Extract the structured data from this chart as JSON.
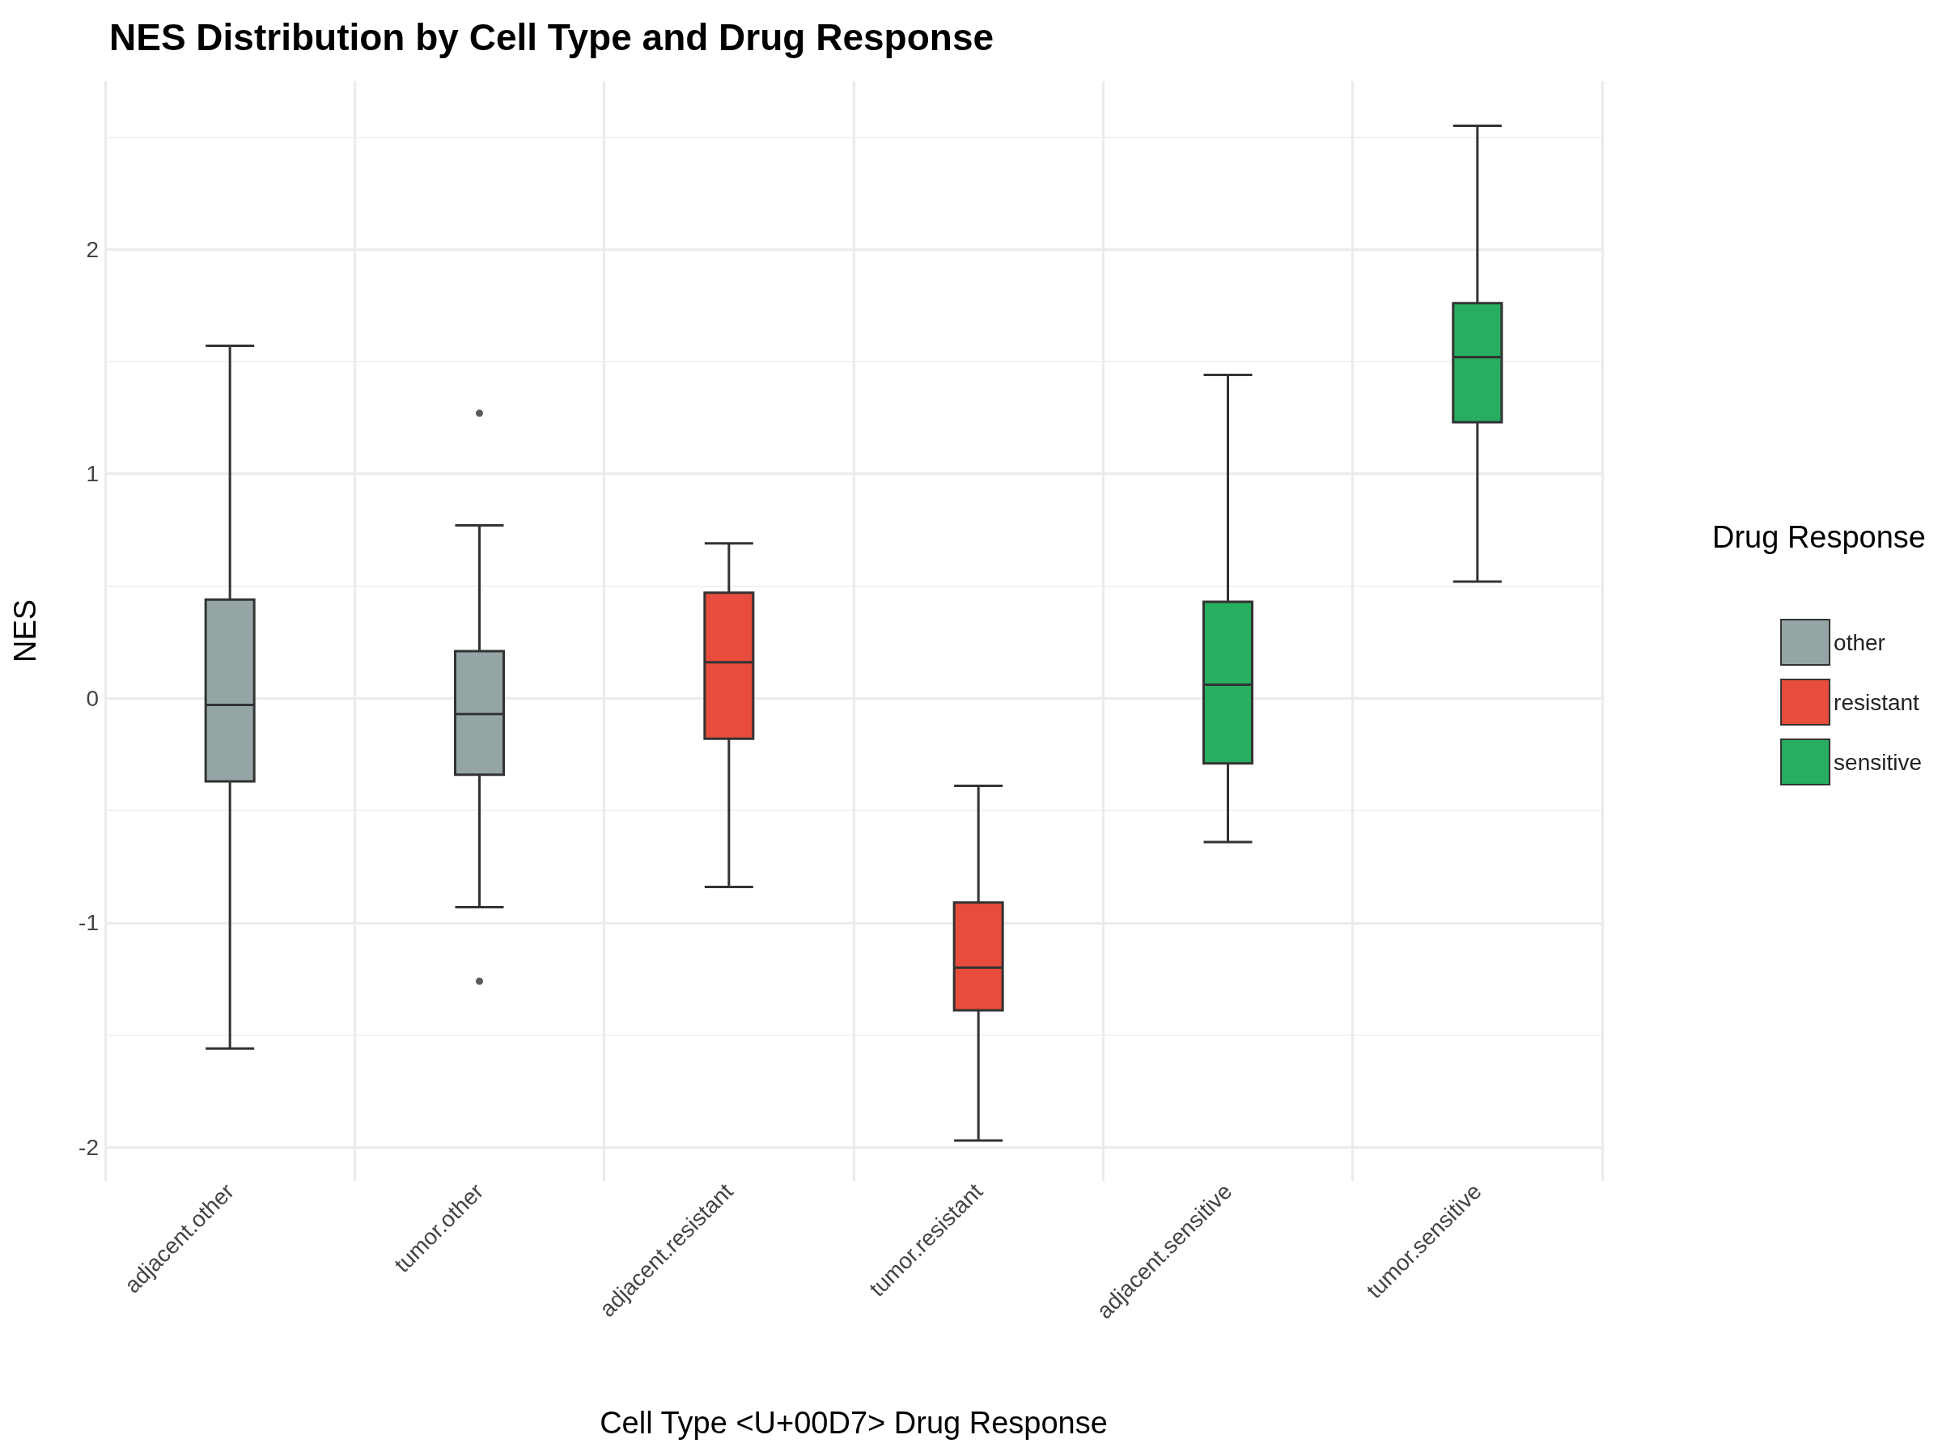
{
  "chart_data": {
    "type": "box",
    "title": "NES Distribution by Cell Type and Drug Response",
    "xlabel": "Cell Type <U+00D7> Drug Response",
    "ylabel": "NES",
    "legend_title": "Drug Response",
    "categories": [
      "adjacent.other",
      "tumor.other",
      "adjacent.resistant",
      "tumor.resistant",
      "adjacent.sensitive",
      "tumor.sensitive"
    ],
    "series": [
      {
        "name": "other",
        "color": "#95a5a6",
        "boxes": [
          {
            "low": -1.56,
            "q1": -0.37,
            "median": -0.03,
            "q3": 0.44,
            "high": 1.57
          },
          {
            "low": -0.93,
            "q1": -0.34,
            "median": -0.07,
            "q3": 0.21,
            "high": 0.77,
            "outliers": [
              1.27,
              -1.26
            ]
          },
          null,
          null,
          null,
          null
        ]
      },
      {
        "name": "resistant",
        "color": "#e74c3c",
        "boxes": [
          null,
          null,
          {
            "low": -0.84,
            "q1": -0.18,
            "median": 0.16,
            "q3": 0.47,
            "high": 0.69
          },
          {
            "low": -1.97,
            "q1": -1.39,
            "median": -1.2,
            "q3": -0.91,
            "high": -0.39
          },
          null,
          null
        ]
      },
      {
        "name": "sensitive",
        "color": "#27ae60",
        "boxes": [
          null,
          null,
          null,
          null,
          {
            "low": -0.64,
            "q1": -0.29,
            "median": 0.06,
            "q3": 0.43,
            "high": 1.44
          },
          {
            "low": 0.52,
            "q1": 1.23,
            "median": 1.52,
            "q3": 1.76,
            "high": 2.55
          }
        ]
      }
    ],
    "ylim": [
      -2.15,
      2.75
    ],
    "yticks": [
      -2,
      -1,
      0,
      1,
      2
    ],
    "grid": true,
    "legend": "right"
  }
}
